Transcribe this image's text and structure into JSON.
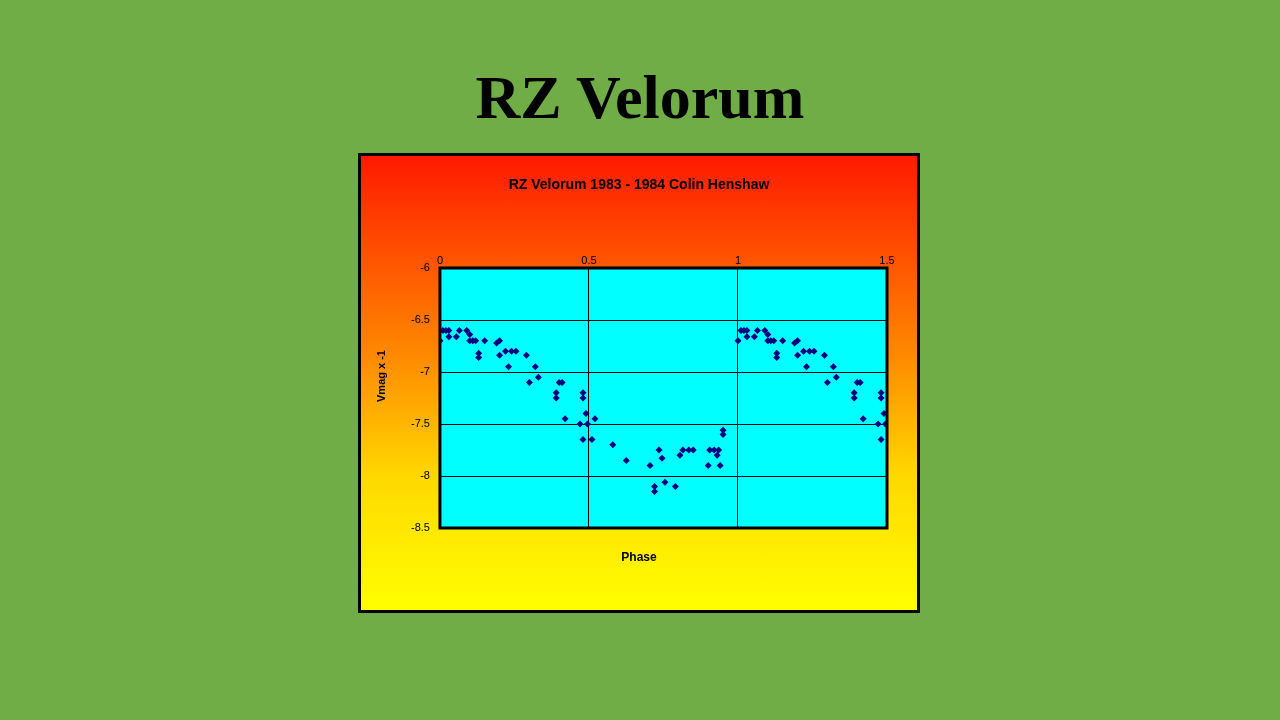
{
  "chart_data": {
    "type": "scatter",
    "title": "RZ Velorum",
    "subtitle": "RZ Velorum 1983 - 1984 Colin Henshaw",
    "xlabel": "Phase",
    "ylabel": "Vmag x -1",
    "xlim": [
      0,
      1.5
    ],
    "xticks": [
      0,
      0.5,
      1,
      1.5
    ],
    "ylim": [
      -8.5,
      -6
    ],
    "yticks": [
      -8.5,
      -8,
      -7.5,
      -7,
      -6.5,
      -6
    ],
    "grid": true,
    "marker": "diamond",
    "series": [
      {
        "color": "#000080",
        "x": [
          0,
          0.01,
          0.02,
          0.03,
          0.03,
          0.055,
          0.065,
          0.09,
          0.1,
          0.1,
          0.11,
          0.12,
          0.13,
          0.13,
          0.15,
          0.19,
          0.2,
          0.2,
          0.22,
          0.24,
          0.255,
          0.23,
          0.29,
          0.3,
          0.32,
          0.33,
          0.39,
          0.39,
          0.4,
          0.41,
          0.42,
          0.47,
          0.48,
          0.48,
          0.48,
          0.49,
          0.495,
          0.51,
          0.52,
          0.58,
          0.625,
          0.705,
          0.72,
          0.72,
          0.735,
          0.745,
          0.755,
          0.79,
          0.805,
          0.815,
          0.835,
          0.85,
          0.9,
          0.905,
          0.92,
          0.93,
          0.935,
          0.94,
          0.95,
          0.95,
          1,
          1.01,
          1.02,
          1.03,
          1.03,
          1.055,
          1.065,
          1.09,
          1.1,
          1.1,
          1.11,
          1.12,
          1.13,
          1.13,
          1.15,
          1.19,
          1.2,
          1.2,
          1.22,
          1.24,
          1.255,
          1.23,
          1.29,
          1.3,
          1.32,
          1.33,
          1.39,
          1.39,
          1.4,
          1.41,
          1.42,
          1.47,
          1.48,
          1.48,
          1.48,
          1.49,
          1.495
        ],
        "values": [
          -6.7,
          -6.6,
          -6.6,
          -6.6,
          -6.66,
          -6.66,
          -6.6,
          -6.6,
          -6.64,
          -6.7,
          -6.7,
          -6.7,
          -6.82,
          -6.86,
          -6.7,
          -6.72,
          -6.7,
          -6.84,
          -6.8,
          -6.8,
          -6.8,
          -6.95,
          -6.84,
          -7.1,
          -6.95,
          -7.05,
          -7.2,
          -7.25,
          -7.1,
          -7.1,
          -7.45,
          -7.5,
          -7.2,
          -7.25,
          -7.65,
          -7.4,
          -7.5,
          -7.65,
          -7.45,
          -7.7,
          -7.85,
          -7.9,
          -8.1,
          -8.15,
          -7.75,
          -7.83,
          -8.06,
          -8.1,
          -7.8,
          -7.75,
          -7.75,
          -7.75,
          -7.9,
          -7.75,
          -7.75,
          -7.8,
          -7.75,
          -7.9,
          -7.56,
          -7.6,
          -6.7,
          -6.6,
          -6.6,
          -6.6,
          -6.66,
          -6.66,
          -6.6,
          -6.6,
          -6.64,
          -6.7,
          -6.7,
          -6.7,
          -6.82,
          -6.86,
          -6.7,
          -6.72,
          -6.7,
          -6.84,
          -6.8,
          -6.8,
          -6.8,
          -6.95,
          -6.84,
          -7.1,
          -6.95,
          -7.05,
          -7.2,
          -7.25,
          -7.1,
          -7.1,
          -7.45,
          -7.5,
          -7.2,
          -7.25,
          -7.65,
          -7.4,
          -7.5
        ]
      }
    ]
  }
}
